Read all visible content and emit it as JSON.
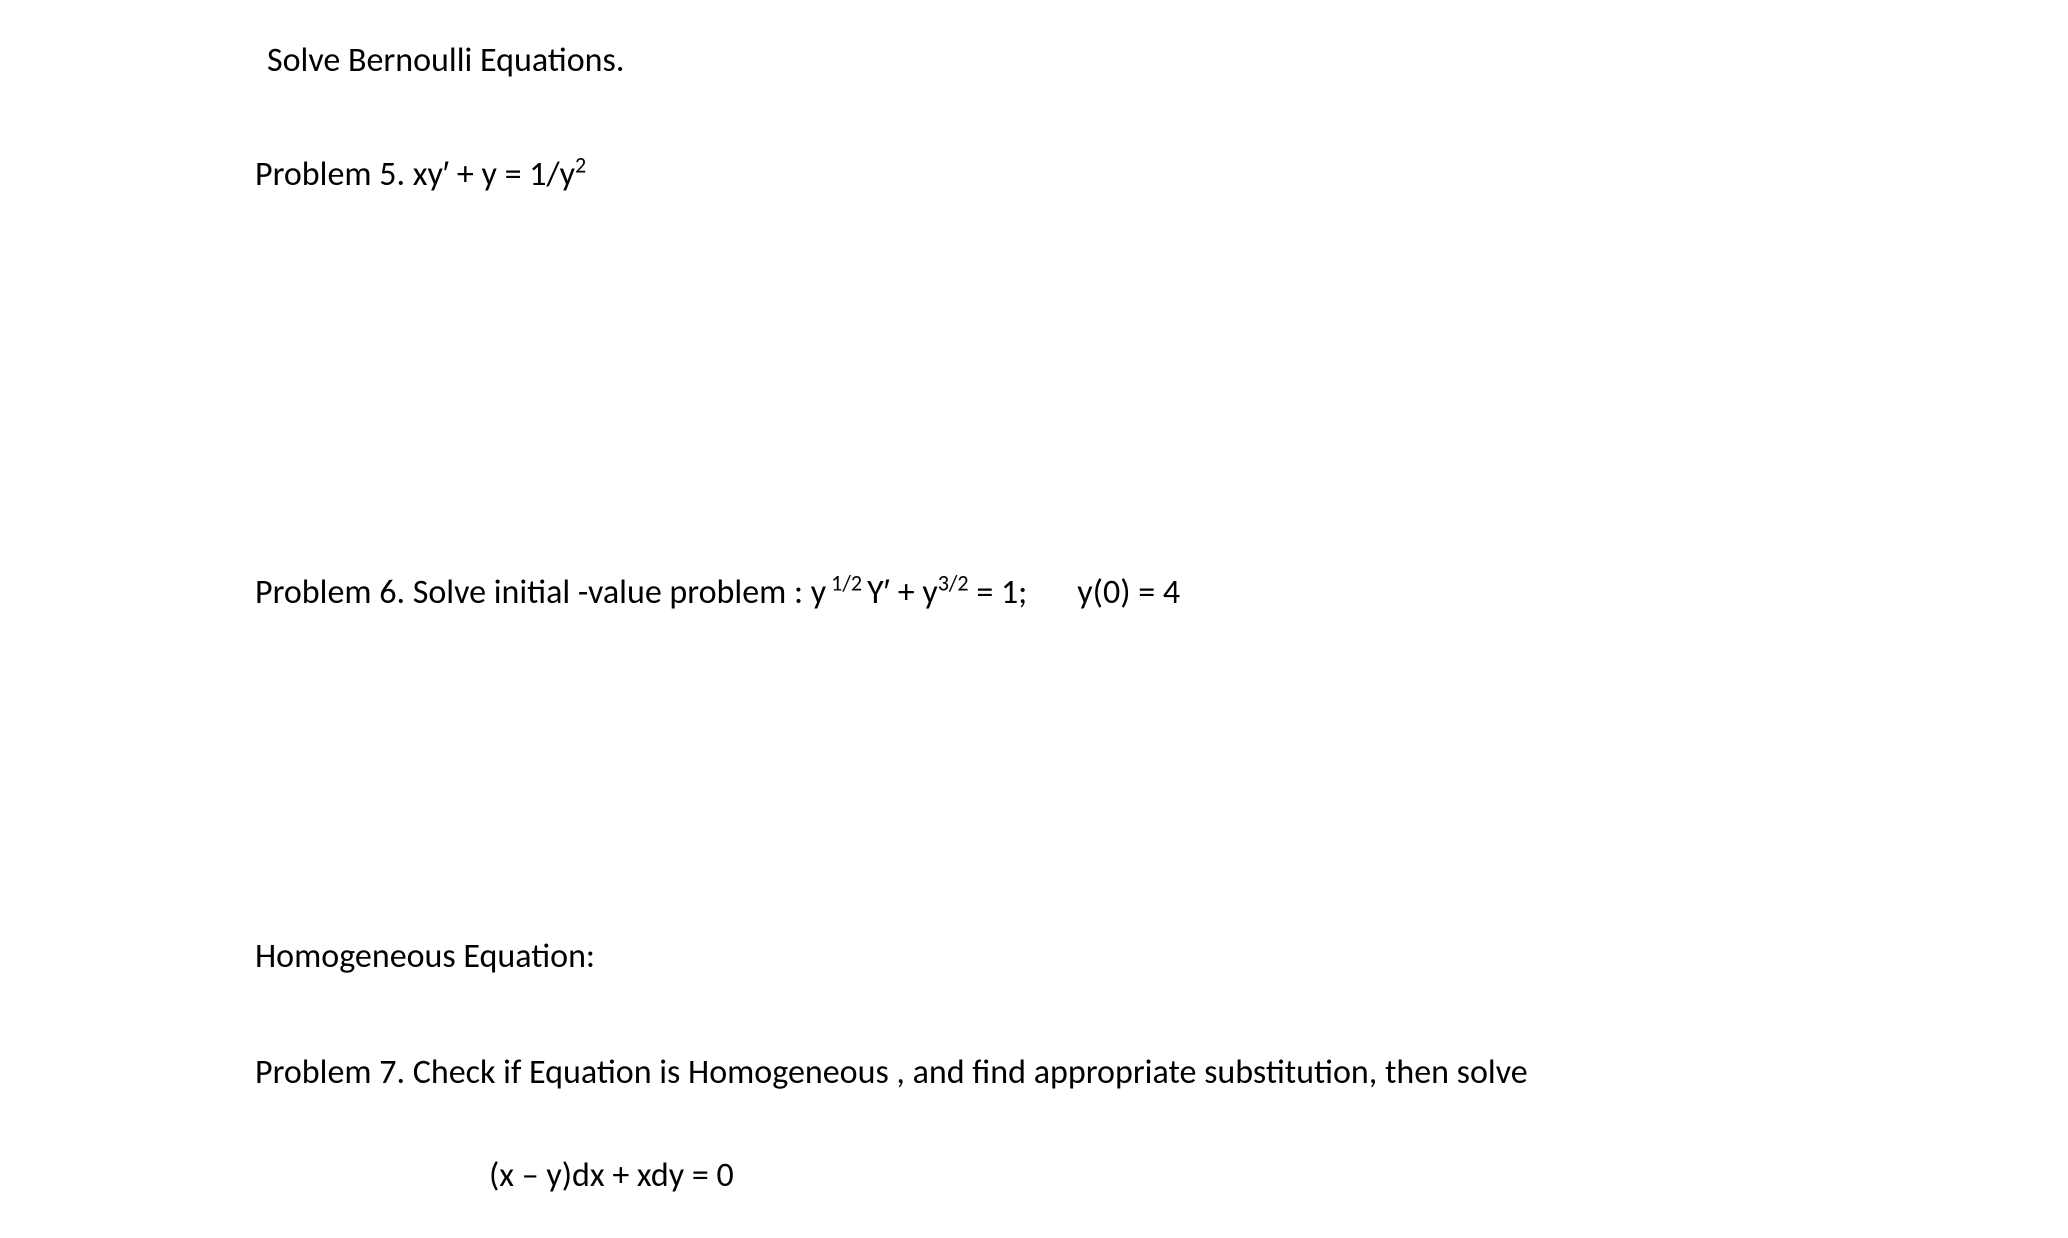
{
  "document": {
    "background_color": "#ffffff",
    "text_color": "#000000",
    "font_family": "Calibri",
    "base_fontsize": 34,
    "section1": {
      "heading": "Solve Bernoulli Equations.",
      "problem5": {
        "label": "Problem 5. ",
        "equation_main": "xy′ + y = 1/y",
        "exponent": "2"
      },
      "problem6": {
        "label": "Problem 6. Solve initial -value  problem :   ",
        "eq_part1": "y",
        "exp1": " 1/2 ",
        "eq_part2": "Y′ + y",
        "exp2": "3/2",
        "eq_part3": "  = 1;",
        "initial_condition": "y(0) = 4"
      }
    },
    "section2": {
      "heading": "Homogeneous Equation:",
      "problem7": {
        "label": "Problem 7.   Check if Equation is Homogeneous , and find appropriate substitution, then solve",
        "equation": "(x – y)dx + xdy = 0"
      }
    }
  }
}
